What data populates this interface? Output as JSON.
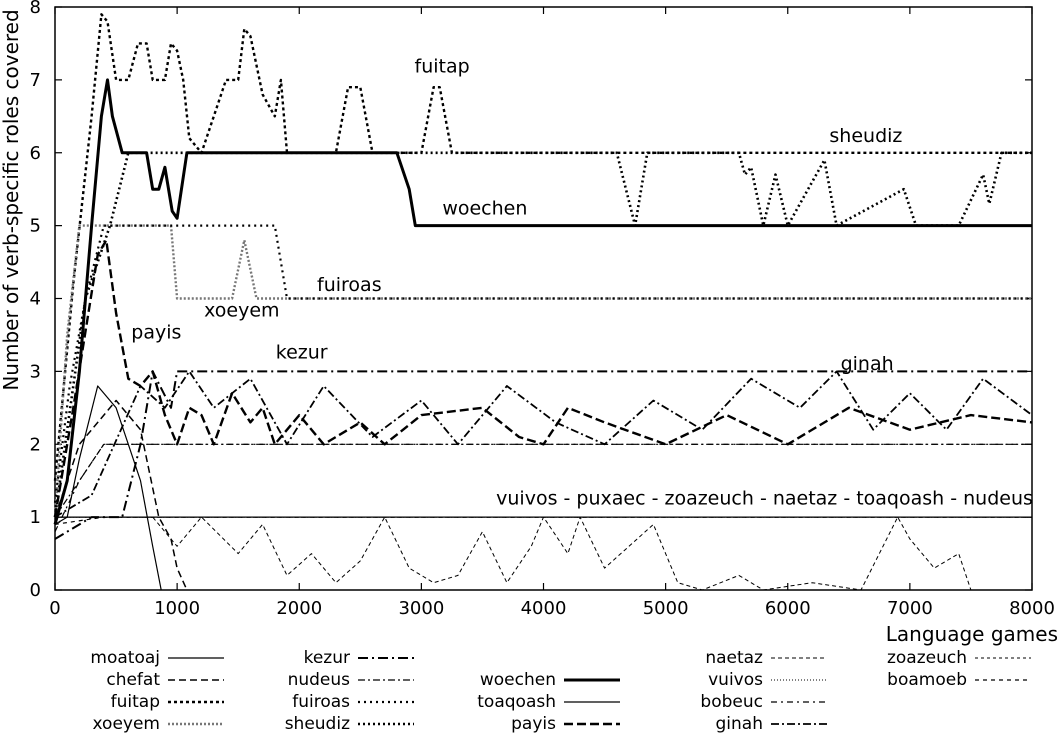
{
  "chart_data": {
    "type": "line",
    "xlabel": "Language games",
    "ylabel": "Number of verb-specific roles covered",
    "xlim": [
      0,
      8000
    ],
    "ylim": [
      0,
      8
    ],
    "x_ticks": [
      0,
      1000,
      2000,
      3000,
      4000,
      5000,
      6000,
      7000,
      8000
    ],
    "y_ticks": [
      0,
      1,
      2,
      3,
      4,
      5,
      6,
      7,
      8
    ],
    "grid": false,
    "legend_position": "bottom",
    "series": [
      {
        "name": "moatoaj",
        "color": "#000000",
        "dash": "solid",
        "width": 1.2,
        "points": [
          [
            0,
            0.9
          ],
          [
            100,
            1.0
          ],
          [
            200,
            1.8
          ],
          [
            350,
            2.8
          ],
          [
            500,
            2.5
          ],
          [
            700,
            1.5
          ],
          [
            800,
            0.6
          ],
          [
            870,
            0
          ]
        ]
      },
      {
        "name": "chefat",
        "color": "#000000",
        "dash": "dashed",
        "width": 1.5,
        "points": [
          [
            0,
            1.0
          ],
          [
            200,
            2.0
          ],
          [
            500,
            2.6
          ],
          [
            700,
            2.2
          ],
          [
            850,
            1.0
          ],
          [
            950,
            0.7
          ],
          [
            1000,
            0.3
          ],
          [
            1080,
            0
          ]
        ]
      },
      {
        "name": "fuitap",
        "color": "#000000",
        "dash": "dotted-heavy",
        "width": 2.4,
        "points": [
          [
            0,
            1.5
          ],
          [
            150,
            4.2
          ],
          [
            300,
            6.5
          ],
          [
            380,
            7.9
          ],
          [
            430,
            7.8
          ],
          [
            500,
            7.0
          ],
          [
            600,
            7.0
          ],
          [
            680,
            7.5
          ],
          [
            750,
            7.5
          ],
          [
            800,
            7.0
          ],
          [
            900,
            7.0
          ],
          [
            950,
            7.5
          ],
          [
            1000,
            7.4
          ],
          [
            1050,
            7.0
          ],
          [
            1100,
            6.2
          ],
          [
            1200,
            6.0
          ],
          [
            1300,
            6.5
          ],
          [
            1400,
            7.0
          ],
          [
            1500,
            7.0
          ],
          [
            1550,
            7.7
          ],
          [
            1600,
            7.6
          ],
          [
            1700,
            6.8
          ],
          [
            1800,
            6.5
          ],
          [
            1850,
            7.0
          ],
          [
            1900,
            6.0
          ],
          [
            2000,
            6.0
          ],
          [
            2300,
            6.0
          ],
          [
            2400,
            6.9
          ],
          [
            2500,
            6.9
          ],
          [
            2600,
            6.0
          ],
          [
            3000,
            6.0
          ],
          [
            3100,
            6.9
          ],
          [
            3150,
            6.9
          ],
          [
            3250,
            6.0
          ],
          [
            8000,
            6.0
          ]
        ]
      },
      {
        "name": "xoeyem",
        "color": "#777777",
        "dash": "dotted",
        "width": 2.4,
        "points": [
          [
            0,
            1.0
          ],
          [
            100,
            3.5
          ],
          [
            200,
            5.0
          ],
          [
            400,
            5.0
          ],
          [
            800,
            5.0
          ],
          [
            950,
            5.0
          ],
          [
            1000,
            4.0
          ],
          [
            1450,
            4.0
          ],
          [
            1550,
            4.8
          ],
          [
            1650,
            4.0
          ],
          [
            8000,
            4.0
          ]
        ]
      },
      {
        "name": "kezur",
        "color": "#000000",
        "dash": "dashdot",
        "width": 2.0,
        "points": [
          [
            0,
            0.7
          ],
          [
            300,
            1.0
          ],
          [
            550,
            1.0
          ],
          [
            700,
            2.0
          ],
          [
            800,
            3.0
          ],
          [
            950,
            2.5
          ],
          [
            1000,
            3.0
          ],
          [
            1200,
            3.0
          ],
          [
            1500,
            3.0
          ],
          [
            2000,
            3.0
          ],
          [
            2500,
            3.0
          ],
          [
            3000,
            3.0
          ],
          [
            3500,
            3.0
          ],
          [
            4000,
            3.0
          ],
          [
            4500,
            3.0
          ],
          [
            5000,
            3.0
          ],
          [
            5500,
            3.0
          ],
          [
            6000,
            3.0
          ],
          [
            6500,
            3.0
          ],
          [
            7000,
            3.0
          ],
          [
            7500,
            3.0
          ],
          [
            8000,
            3.0
          ]
        ]
      },
      {
        "name": "nudeus",
        "color": "#000000",
        "dash": "dashdot-light",
        "width": 1.2,
        "points": [
          [
            0,
            1.0
          ],
          [
            200,
            1.5
          ],
          [
            400,
            2.0
          ],
          [
            900,
            2.0
          ],
          [
            1500,
            2.0
          ],
          [
            2500,
            2.0
          ],
          [
            3500,
            2.0
          ],
          [
            4500,
            2.0
          ],
          [
            5500,
            2.0
          ],
          [
            6500,
            2.0
          ],
          [
            7500,
            2.0
          ],
          [
            8000,
            2.0
          ]
        ]
      },
      {
        "name": "fuiroas",
        "color": "#000000",
        "dash": "dotted-sparse",
        "width": 2.2,
        "points": [
          [
            0,
            1.2
          ],
          [
            120,
            2.8
          ],
          [
            250,
            4.0
          ],
          [
            400,
            5.0
          ],
          [
            600,
            5.0
          ],
          [
            800,
            5.0
          ],
          [
            1500,
            5.0
          ],
          [
            1800,
            5.0
          ],
          [
            1900,
            4.0
          ],
          [
            8000,
            4.0
          ]
        ]
      },
      {
        "name": "sheudiz",
        "color": "#000000",
        "dash": "dotted-heavy2",
        "width": 2.6,
        "points": [
          [
            0,
            1.0
          ],
          [
            250,
            4.0
          ],
          [
            450,
            5.0
          ],
          [
            600,
            6.0
          ],
          [
            1000,
            6.0
          ],
          [
            4600,
            6.0
          ],
          [
            4750,
            5.0
          ],
          [
            4850,
            6.0
          ],
          [
            5600,
            6.0
          ],
          [
            5650,
            5.7
          ],
          [
            5700,
            5.8
          ],
          [
            5800,
            5.0
          ],
          [
            5900,
            5.7
          ],
          [
            6000,
            5.0
          ],
          [
            6300,
            5.9
          ],
          [
            6400,
            5.0
          ],
          [
            6950,
            5.5
          ],
          [
            7050,
            5.0
          ],
          [
            7400,
            5.0
          ],
          [
            7600,
            5.7
          ],
          [
            7650,
            5.3
          ],
          [
            7750,
            6.0
          ],
          [
            8000,
            6.0
          ]
        ]
      },
      {
        "name": "woechen",
        "color": "#000000",
        "dash": "solid",
        "width": 3.0,
        "points": [
          [
            0,
            0.9
          ],
          [
            100,
            1.5
          ],
          [
            200,
            3.0
          ],
          [
            300,
            5.0
          ],
          [
            380,
            6.5
          ],
          [
            430,
            7.0
          ],
          [
            470,
            6.5
          ],
          [
            550,
            6.0
          ],
          [
            750,
            6.0
          ],
          [
            800,
            5.5
          ],
          [
            850,
            5.5
          ],
          [
            900,
            5.8
          ],
          [
            960,
            5.2
          ],
          [
            1000,
            5.1
          ],
          [
            1080,
            6.0
          ],
          [
            2800,
            6.0
          ],
          [
            2900,
            5.5
          ],
          [
            2950,
            5.0
          ],
          [
            8000,
            5.0
          ]
        ]
      },
      {
        "name": "toaqoash",
        "color": "#000000",
        "dash": "solid",
        "width": 1.2,
        "points": [
          [
            0,
            1.0
          ],
          [
            8000,
            1.0
          ]
        ]
      },
      {
        "name": "payis",
        "color": "#000000",
        "dash": "dashed-heavy",
        "width": 2.4,
        "points": [
          [
            0,
            1.0
          ],
          [
            150,
            2.5
          ],
          [
            350,
            4.6
          ],
          [
            420,
            4.8
          ],
          [
            500,
            3.8
          ],
          [
            600,
            2.9
          ],
          [
            700,
            2.8
          ],
          [
            800,
            3.0
          ],
          [
            900,
            2.4
          ],
          [
            1000,
            2.0
          ],
          [
            1100,
            2.5
          ],
          [
            1200,
            2.4
          ],
          [
            1300,
            2.0
          ],
          [
            1450,
            2.7
          ],
          [
            1600,
            2.3
          ],
          [
            1700,
            2.5
          ],
          [
            1800,
            2.0
          ],
          [
            2000,
            2.4
          ],
          [
            2200,
            2.0
          ],
          [
            2500,
            2.3
          ],
          [
            2700,
            2.0
          ],
          [
            3000,
            2.4
          ],
          [
            3500,
            2.5
          ],
          [
            3800,
            2.1
          ],
          [
            4000,
            2.0
          ],
          [
            4200,
            2.5
          ],
          [
            4500,
            2.3
          ],
          [
            5000,
            2.0
          ],
          [
            5500,
            2.4
          ],
          [
            6000,
            2.0
          ],
          [
            6500,
            2.5
          ],
          [
            7000,
            2.2
          ],
          [
            7500,
            2.4
          ],
          [
            8000,
            2.3
          ]
        ]
      },
      {
        "name": "naetaz",
        "color": "#000000",
        "dash": "dashed-light",
        "width": 1.0,
        "points": [
          [
            0,
            1.0
          ],
          [
            300,
            1.0
          ],
          [
            800,
            1.0
          ],
          [
            1000,
            0.6
          ],
          [
            1200,
            1.0
          ],
          [
            1500,
            0.5
          ],
          [
            1700,
            0.9
          ],
          [
            1900,
            0.2
          ],
          [
            2100,
            0.5
          ],
          [
            2300,
            0.1
          ],
          [
            2500,
            0.4
          ],
          [
            2700,
            1.0
          ],
          [
            2900,
            0.3
          ],
          [
            3100,
            0.1
          ],
          [
            3300,
            0.2
          ],
          [
            3500,
            0.8
          ],
          [
            3700,
            0.1
          ],
          [
            3900,
            0.6
          ],
          [
            4000,
            1.0
          ],
          [
            4200,
            0.5
          ],
          [
            4300,
            1.0
          ],
          [
            4500,
            0.3
          ],
          [
            4700,
            0.6
          ],
          [
            4900,
            0.9
          ],
          [
            5100,
            0.1
          ],
          [
            5300,
            0
          ],
          [
            5600,
            0.2
          ],
          [
            5800,
            0
          ],
          [
            6200,
            0.1
          ],
          [
            6600,
            0
          ],
          [
            6900,
            1.0
          ],
          [
            7000,
            0.7
          ],
          [
            7200,
            0.3
          ],
          [
            7400,
            0.5
          ],
          [
            7500,
            0
          ]
        ]
      },
      {
        "name": "vuivos",
        "color": "#000000",
        "dash": "dotted-fine",
        "width": 1.0,
        "points": [
          [
            0,
            1.0
          ],
          [
            8000,
            1.0
          ]
        ]
      },
      {
        "name": "bobeuc",
        "color": "#000000",
        "dash": "dashdot-light2",
        "width": 1.2,
        "points": [
          [
            0,
            0.8
          ],
          [
            200,
            1.5
          ],
          [
            400,
            2.0
          ],
          [
            1000,
            2.0
          ],
          [
            2000,
            2.0
          ],
          [
            3000,
            2.0
          ],
          [
            4000,
            2.0
          ],
          [
            5000,
            2.0
          ],
          [
            6000,
            2.0
          ],
          [
            7000,
            2.0
          ],
          [
            8000,
            2.0
          ]
        ]
      },
      {
        "name": "ginah",
        "color": "#000000",
        "dash": "dashdot2",
        "width": 1.8,
        "points": [
          [
            0,
            1.0
          ],
          [
            300,
            1.3
          ],
          [
            700,
            2.8
          ],
          [
            900,
            2.5
          ],
          [
            1100,
            3.0
          ],
          [
            1300,
            2.5
          ],
          [
            1600,
            2.9
          ],
          [
            1900,
            2.0
          ],
          [
            2200,
            2.8
          ],
          [
            2600,
            2.1
          ],
          [
            3000,
            2.6
          ],
          [
            3300,
            2.0
          ],
          [
            3700,
            2.8
          ],
          [
            4100,
            2.3
          ],
          [
            4500,
            2.0
          ],
          [
            4900,
            2.6
          ],
          [
            5300,
            2.2
          ],
          [
            5700,
            2.9
          ],
          [
            6100,
            2.5
          ],
          [
            6400,
            3.0
          ],
          [
            6700,
            2.2
          ],
          [
            7000,
            2.7
          ],
          [
            7300,
            2.2
          ],
          [
            7600,
            2.9
          ],
          [
            8000,
            2.4
          ]
        ]
      },
      {
        "name": "zoazeuch",
        "color": "#000000",
        "dash": "dashed-fine",
        "width": 1.0,
        "points": [
          [
            0,
            1.0
          ],
          [
            8000,
            1.0
          ]
        ]
      },
      {
        "name": "boamoeb",
        "color": "#000000",
        "dash": "dashed-fine2",
        "width": 1.2,
        "points": [
          [
            0,
            0.9
          ],
          [
            400,
            1.0
          ],
          [
            8000,
            1.0
          ]
        ]
      }
    ],
    "annotations": [
      {
        "text": "fuitap",
        "x": 3170,
        "y": 7.1
      },
      {
        "text": "sheudiz",
        "x": 6640,
        "y": 6.15
      },
      {
        "text": "woechen",
        "x": 3520,
        "y": 5.15
      },
      {
        "text": "fuiroas",
        "x": 2410,
        "y": 4.1
      },
      {
        "text": "xoeyem",
        "x": 1530,
        "y": 3.75
      },
      {
        "text": "payis",
        "x": 830,
        "y": 3.45
      },
      {
        "text": "kezur",
        "x": 2020,
        "y": 3.18
      },
      {
        "text": "ginah",
        "x": 6650,
        "y": 3.02
      },
      {
        "text": "vuivos - puxaec - zoazeuch - naetaz - toaqoash - nudeus",
        "x": 5810,
        "y": 1.17
      }
    ]
  }
}
